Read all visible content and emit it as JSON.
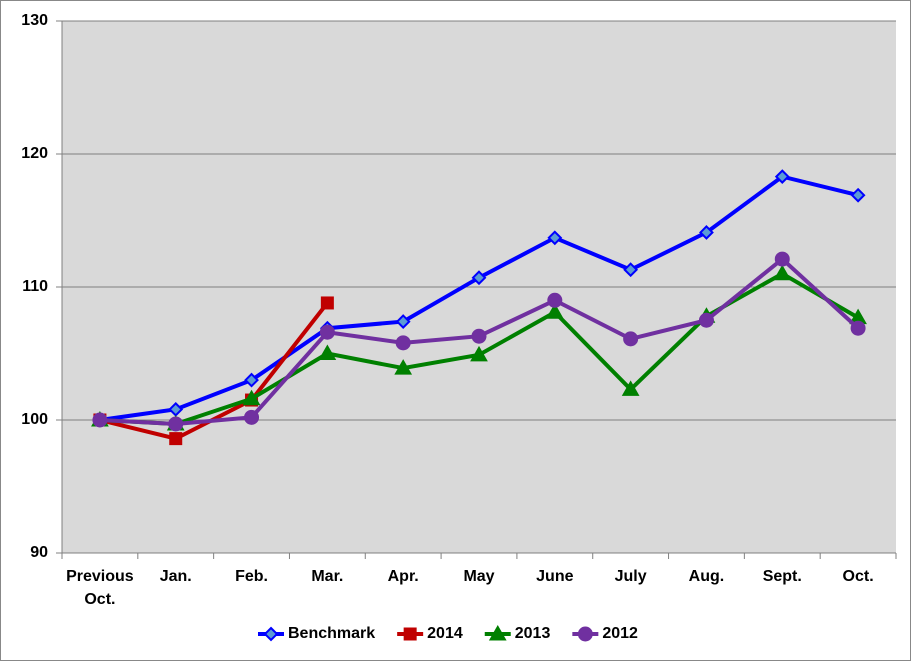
{
  "chart_data": {
    "type": "line",
    "categories": [
      "Previous Oct.",
      "Jan.",
      "Feb.",
      "Mar.",
      "Apr.",
      "May",
      "June",
      "July",
      "Aug.",
      "Sept.",
      "Oct."
    ],
    "series": [
      {
        "name": "Benchmark",
        "color": "#0000ff",
        "marker": "diamond",
        "values": [
          100,
          100.8,
          103,
          106.9,
          107.4,
          110.7,
          113.7,
          111.3,
          114.1,
          118.3,
          116.9
        ]
      },
      {
        "name": "2014",
        "color": "#c00000",
        "marker": "square",
        "values": [
          100,
          98.6,
          101.5,
          108.8,
          null,
          null,
          null,
          null,
          null,
          null,
          null
        ]
      },
      {
        "name": "2013",
        "color": "#008000",
        "marker": "triangle",
        "values": [
          100,
          99.7,
          101.6,
          105,
          103.9,
          104.9,
          108.1,
          102.3,
          107.8,
          111,
          107.7
        ]
      },
      {
        "name": "2012",
        "color": "#7030a0",
        "marker": "circle",
        "values": [
          100,
          99.7,
          100.2,
          106.6,
          105.8,
          106.3,
          109,
          106.1,
          107.5,
          112.1,
          106.9
        ]
      }
    ],
    "ylim": [
      90,
      130
    ],
    "yticks": [
      90,
      100,
      110,
      120,
      130
    ],
    "grid": true,
    "legend": "bottom"
  }
}
